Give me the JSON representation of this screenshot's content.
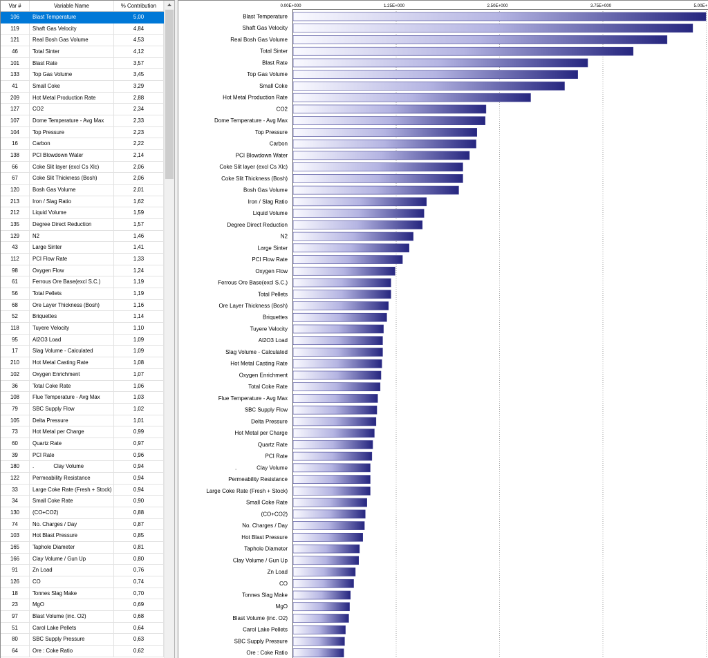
{
  "table": {
    "headers": {
      "var": "Var #",
      "name": "Variable Name",
      "contribution": "% Contribution"
    },
    "selected_row_index": 0,
    "rows": [
      {
        "var": "106",
        "name": "Blast Temperature",
        "contribution": "5,00"
      },
      {
        "var": "119",
        "name": "Shaft Gas Velocity",
        "contribution": "4,84"
      },
      {
        "var": "121",
        "name": "Real Bosh Gas Volume",
        "contribution": "4,53"
      },
      {
        "var": "46",
        "name": "Total Sinter",
        "contribution": "4,12"
      },
      {
        "var": "101",
        "name": "Blast Rate",
        "contribution": "3,57"
      },
      {
        "var": "133",
        "name": "Top Gas Volume",
        "contribution": "3,45"
      },
      {
        "var": "41",
        "name": "Small Coke",
        "contribution": "3,29"
      },
      {
        "var": "209",
        "name": "Hot Metal Production Rate",
        "contribution": "2,88"
      },
      {
        "var": "127",
        "name": "CO2",
        "contribution": "2,34"
      },
      {
        "var": "107",
        "name": "Dome Temperature - Avg Max",
        "contribution": "2,33"
      },
      {
        "var": "104",
        "name": "Top Pressure",
        "contribution": "2,23"
      },
      {
        "var": "16",
        "name": "Carbon",
        "contribution": "2,22"
      },
      {
        "var": "138",
        "name": "PCI Blowdown Water",
        "contribution": "2,14"
      },
      {
        "var": "66",
        "name": "Coke Slit layer (excl Cs Xlc)",
        "contribution": "2,06"
      },
      {
        "var": "67",
        "name": "Coke Slit Thickness (Bosh)",
        "contribution": "2,06"
      },
      {
        "var": "120",
        "name": "Bosh Gas Volume",
        "contribution": "2,01"
      },
      {
        "var": "213",
        "name": "Iron / Slag Ratio",
        "contribution": "1,62"
      },
      {
        "var": "212",
        "name": "Liquid Volume",
        "contribution": "1,59"
      },
      {
        "var": "135",
        "name": "Degree Direct Reduction",
        "contribution": "1,57"
      },
      {
        "var": "129",
        "name": "N2",
        "contribution": "1,46"
      },
      {
        "var": "43",
        "name": "Large Sinter",
        "contribution": "1,41"
      },
      {
        "var": "112",
        "name": "PCI Flow Rate",
        "contribution": "1,33"
      },
      {
        "var": "98",
        "name": "Oxygen Flow",
        "contribution": "1,24"
      },
      {
        "var": "61",
        "name": "Ferrous Ore Base(excl S.C.)",
        "contribution": "1,19"
      },
      {
        "var": "56",
        "name": "Total Pellets",
        "contribution": "1,19"
      },
      {
        "var": "68",
        "name": "Ore Layer Thickness (Bosh)",
        "contribution": "1,16"
      },
      {
        "var": "52",
        "name": "Briquettes",
        "contribution": "1,14"
      },
      {
        "var": "118",
        "name": "Tuyere Velocity",
        "contribution": "1,10"
      },
      {
        "var": "95",
        "name": "Al2O3 Load",
        "contribution": "1,09"
      },
      {
        "var": "17",
        "name": "Slag Volume - Calculated",
        "contribution": "1,09"
      },
      {
        "var": "210",
        "name": "Hot Metal Casting Rate",
        "contribution": "1,08"
      },
      {
        "var": "102",
        "name": "Oxygen Enrichment",
        "contribution": "1,07"
      },
      {
        "var": "36",
        "name": "Total Coke Rate",
        "contribution": "1,06"
      },
      {
        "var": "108",
        "name": "Flue Temperature - Avg Max",
        "contribution": "1,03"
      },
      {
        "var": "79",
        "name": "SBC Supply Flow",
        "contribution": "1,02"
      },
      {
        "var": "105",
        "name": "Delta Pressure",
        "contribution": "1,01"
      },
      {
        "var": "73",
        "name": "Hot Metal per Charge",
        "contribution": "0,99"
      },
      {
        "var": "60",
        "name": "Quartz Rate",
        "contribution": "0,97"
      },
      {
        "var": "39",
        "name": "PCI Rate",
        "contribution": "0,96"
      },
      {
        "var": "180",
        "name": ".             Clay Volume",
        "contribution": "0,94"
      },
      {
        "var": "122",
        "name": "Permeability Resistance",
        "contribution": "0,94"
      },
      {
        "var": "33",
        "name": "Large Coke Rate (Fresh + Stock)",
        "contribution": "0,94"
      },
      {
        "var": "34",
        "name": "Small Coke Rate",
        "contribution": "0,90"
      },
      {
        "var": "130",
        "name": "(CO+CO2)",
        "contribution": "0,88"
      },
      {
        "var": "74",
        "name": "No. Charges / Day",
        "contribution": "0,87"
      },
      {
        "var": "103",
        "name": "Hot Blast Pressure",
        "contribution": "0,85"
      },
      {
        "var": "165",
        "name": "Taphole Diameter",
        "contribution": "0,81"
      },
      {
        "var": "166",
        "name": "Clay Volume / Gun Up",
        "contribution": "0,80"
      },
      {
        "var": "91",
        "name": "Zn Load",
        "contribution": "0,76"
      },
      {
        "var": "126",
        "name": "CO",
        "contribution": "0,74"
      },
      {
        "var": "18",
        "name": "Tonnes Slag Make",
        "contribution": "0,70"
      },
      {
        "var": "23",
        "name": "MgO",
        "contribution": "0,69"
      },
      {
        "var": "97",
        "name": "Blast Volume (inc. O2)",
        "contribution": "0,68"
      },
      {
        "var": "51",
        "name": "Carol Lake Pellets",
        "contribution": "0,64"
      },
      {
        "var": "80",
        "name": "SBC Supply Pressure",
        "contribution": "0,63"
      },
      {
        "var": "64",
        "name": "Ore : Coke Ratio",
        "contribution": "0,62"
      }
    ]
  },
  "chart_data": {
    "type": "bar",
    "orientation": "horizontal",
    "categories": [
      "Blast Temperature",
      "Shaft Gas Velocity",
      "Real Bosh Gas Volume",
      "Total Sinter",
      "Blast Rate",
      "Top Gas Volume",
      "Small Coke",
      "Hot Metal Production Rate",
      "CO2",
      "Dome Temperature - Avg Max",
      "Top Pressure",
      "Carbon",
      "PCI Blowdown Water",
      "Coke Slit layer (excl Cs Xlc)",
      "Coke Slit Thickness (Bosh)",
      "Bosh Gas Volume",
      "Iron / Slag Ratio",
      "Liquid Volume",
      "Degree Direct Reduction",
      "N2",
      "Large Sinter",
      "PCI Flow Rate",
      "Oxygen Flow",
      "Ferrous Ore Base(excl S.C.)",
      "Total Pellets",
      "Ore Layer Thickness (Bosh)",
      "Briquettes",
      "Tuyere Velocity",
      "Al2O3 Load",
      "Slag Volume - Calculated",
      "Hot Metal Casting Rate",
      "Oxygen Enrichment",
      "Total Coke Rate",
      "Flue Temperature - Avg Max",
      "SBC Supply Flow",
      "Delta Pressure",
      "Hot Metal per Charge",
      "Quartz Rate",
      "PCI Rate",
      ".             Clay Volume",
      "Permeability Resistance",
      "Large Coke Rate (Fresh + Stock)",
      "Small Coke Rate",
      "(CO+CO2)",
      "No. Charges / Day",
      "Hot Blast Pressure",
      "Taphole Diameter",
      "Clay Volume / Gun Up",
      "Zn Load",
      "CO",
      "Tonnes Slag Make",
      "MgO",
      "Blast Volume (inc. O2)",
      "Carol Lake Pellets",
      "SBC Supply Pressure",
      "Ore : Coke Ratio"
    ],
    "values": [
      5.0,
      4.84,
      4.53,
      4.12,
      3.57,
      3.45,
      3.29,
      2.88,
      2.34,
      2.33,
      2.23,
      2.22,
      2.14,
      2.06,
      2.06,
      2.01,
      1.62,
      1.59,
      1.57,
      1.46,
      1.41,
      1.33,
      1.24,
      1.19,
      1.19,
      1.16,
      1.14,
      1.1,
      1.09,
      1.09,
      1.08,
      1.07,
      1.06,
      1.03,
      1.02,
      1.01,
      0.99,
      0.97,
      0.96,
      0.94,
      0.94,
      0.94,
      0.9,
      0.88,
      0.87,
      0.85,
      0.81,
      0.8,
      0.76,
      0.74,
      0.7,
      0.69,
      0.68,
      0.64,
      0.63,
      0.62
    ],
    "xlim": [
      0,
      5
    ],
    "xticks": [
      0,
      1.25,
      2.5,
      3.75,
      5
    ],
    "xtick_labels": [
      "0.00E+000",
      "1.25E+000",
      "2.50E+000",
      "3.75E+000",
      "5.00E+"
    ],
    "x_axis_position": "top",
    "grid": true,
    "legend": "none"
  },
  "colors": {
    "selection_bg": "#0078d7",
    "selection_text": "#ffffff",
    "bar_gradient": [
      "#fafaff",
      "#b4b4e2",
      "#26267f"
    ],
    "bar_edge": "#3a3a90"
  },
  "icons": {
    "scroll_up": "scroll-up-arrow-icon"
  }
}
